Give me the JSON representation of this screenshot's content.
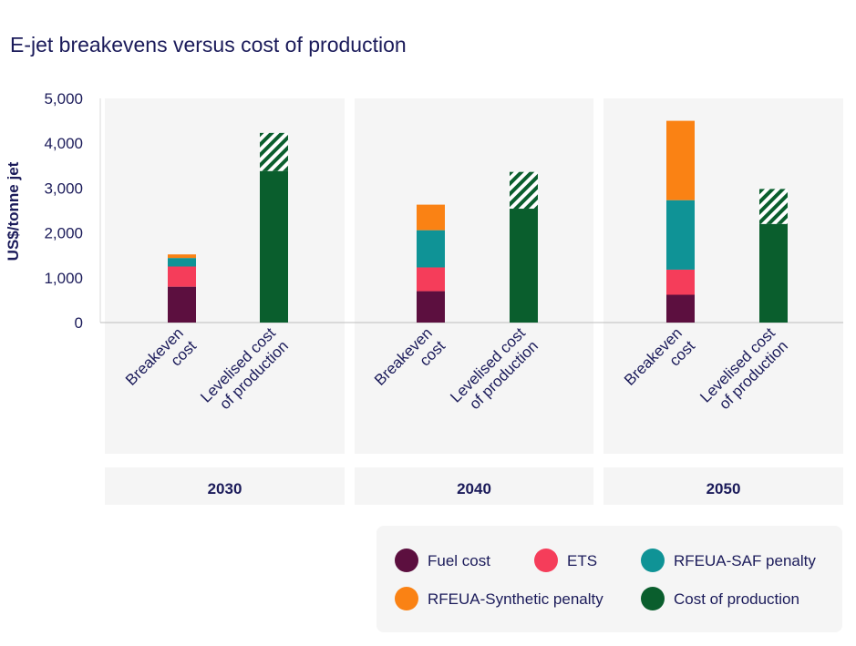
{
  "chart_data": {
    "type": "bar",
    "stacked": true,
    "title": "E-jet breakevens versus cost of production",
    "ylabel": "US$/tonne jet",
    "xlabel": "",
    "ylim": [
      0,
      5000
    ],
    "yticks": [
      0,
      1000,
      2000,
      3000,
      4000,
      5000
    ],
    "ytick_labels": [
      "0",
      "1,000",
      "2,000",
      "3,000",
      "4,000",
      "5,000"
    ],
    "groups": [
      "2030",
      "2040",
      "2050"
    ],
    "categories": [
      {
        "line1": "Breakeven",
        "line2": "cost"
      },
      {
        "line1": "Levelised cost",
        "line2": "of production"
      }
    ],
    "series": [
      {
        "key": "fuel",
        "name": "Fuel cost",
        "color": "#5c0f3f",
        "values": [
          [
            800,
            0
          ],
          [
            700,
            0
          ],
          [
            620,
            0
          ]
        ]
      },
      {
        "key": "ets",
        "name": "ETS",
        "color": "#f53d5a",
        "values": [
          [
            450,
            0
          ],
          [
            530,
            0
          ],
          [
            560,
            0
          ]
        ]
      },
      {
        "key": "saf",
        "name": "RFEUA-SAF penalty",
        "color": "#0f9396",
        "values": [
          [
            190,
            0
          ],
          [
            830,
            0
          ],
          [
            1550,
            0
          ]
        ]
      },
      {
        "key": "syn",
        "name": "RFEUA-Synthetic penalty",
        "color": "#fa8214",
        "values": [
          [
            80,
            0
          ],
          [
            570,
            0
          ],
          [
            1770,
            0
          ]
        ]
      },
      {
        "key": "cop",
        "name": "Cost of production",
        "color": "#0a5e2d",
        "values": [
          [
            0,
            3380
          ],
          [
            0,
            2540
          ],
          [
            0,
            2200
          ]
        ]
      },
      {
        "key": "range",
        "name": "",
        "color": "#0a5e2d",
        "hatched": true,
        "values": [
          [
            0,
            850
          ],
          [
            0,
            820
          ],
          [
            0,
            780
          ]
        ]
      }
    ],
    "legend": [
      "Fuel cost",
      "ETS",
      "RFEUA-SAF penalty",
      "RFEUA-Synthetic penalty",
      "Cost of production"
    ],
    "legend_position": "bottom-right",
    "grid": false,
    "colors": {
      "panel": "#f5f5f5",
      "text": "#1b1b5a",
      "legend_bg": "#f5f5f5"
    }
  }
}
